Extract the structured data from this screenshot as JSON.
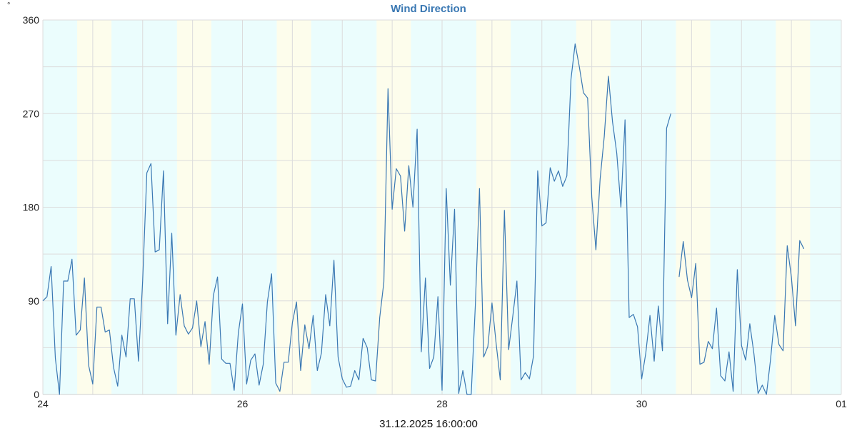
{
  "chart_data": {
    "type": "line",
    "title": "Wind Direction",
    "y_unit": "°",
    "ylim": [
      0,
      360
    ],
    "y_ticks": [
      0,
      90,
      180,
      270,
      360
    ],
    "y_tick_labels": [
      "0",
      "90",
      "180",
      "270",
      "360"
    ],
    "x_range": [
      "2025-12-24 00:00",
      "2026-01-01 00:00"
    ],
    "x_ticks": [
      "2025-12-24 00:00",
      "2025-12-26 00:00",
      "2025-12-28 00:00",
      "2025-12-30 00:00",
      "2026-01-01 00:00"
    ],
    "x_tick_labels": [
      "24",
      "26",
      "28",
      "30",
      "01"
    ],
    "grid": true,
    "night_band_color": "#ebfdfd",
    "day_band_color": "#fdfdec",
    "line_color": "#3a78b3",
    "title_color": "#3a78b3",
    "current_time": "31.12.2025 16:00:00",
    "day_bands": [
      [
        "2025-12-24 08:15",
        "2025-12-24 16:30"
      ],
      [
        "2025-12-25 08:15",
        "2025-12-25 16:30"
      ],
      [
        "2025-12-26 08:15",
        "2025-12-26 16:30"
      ],
      [
        "2025-12-27 08:15",
        "2025-12-27 16:30"
      ],
      [
        "2025-12-28 08:15",
        "2025-12-28 16:30"
      ],
      [
        "2025-12-29 08:15",
        "2025-12-29 16:30"
      ],
      [
        "2025-12-30 08:15",
        "2025-12-30 16:30"
      ],
      [
        "2025-12-31 08:15",
        "2025-12-31 16:30"
      ]
    ],
    "series": [
      {
        "values": [
          [
            "2025-12-24 00:00",
            90
          ],
          [
            "2025-12-24 01:00",
            94
          ],
          [
            "2025-12-24 02:00",
            123
          ],
          [
            "2025-12-24 03:00",
            35
          ],
          [
            "2025-12-24 04:00",
            0
          ],
          [
            "2025-12-24 05:00",
            109
          ],
          [
            "2025-12-24 06:00",
            109
          ],
          [
            "2025-12-24 07:00",
            130
          ],
          [
            "2025-12-24 08:00",
            57
          ],
          [
            "2025-12-24 09:00",
            62
          ],
          [
            "2025-12-24 10:00",
            112
          ],
          [
            "2025-12-24 11:00",
            28
          ],
          [
            "2025-12-24 12:00",
            10
          ],
          [
            "2025-12-24 13:00",
            84
          ],
          [
            "2025-12-24 14:00",
            84
          ],
          [
            "2025-12-24 15:00",
            60
          ],
          [
            "2025-12-24 16:00",
            62
          ],
          [
            "2025-12-24 17:00",
            26
          ],
          [
            "2025-12-24 18:00",
            8
          ],
          [
            "2025-12-24 19:00",
            57
          ],
          [
            "2025-12-24 20:00",
            36
          ],
          [
            "2025-12-24 21:00",
            92
          ],
          [
            "2025-12-24 22:00",
            92
          ],
          [
            "2025-12-24 23:00",
            32
          ],
          [
            "2025-12-25 00:00",
            110
          ],
          [
            "2025-12-25 01:00",
            213
          ],
          [
            "2025-12-25 02:00",
            222
          ],
          [
            "2025-12-25 03:00",
            137
          ],
          [
            "2025-12-25 04:00",
            139
          ],
          [
            "2025-12-25 05:00",
            215
          ],
          [
            "2025-12-25 06:00",
            68
          ],
          [
            "2025-12-25 07:00",
            155
          ],
          [
            "2025-12-25 08:00",
            57
          ],
          [
            "2025-12-25 09:00",
            96
          ],
          [
            "2025-12-25 10:00",
            66
          ],
          [
            "2025-12-25 11:00",
            58
          ],
          [
            "2025-12-25 12:00",
            64
          ],
          [
            "2025-12-25 13:00",
            90
          ],
          [
            "2025-12-25 14:00",
            46
          ],
          [
            "2025-12-25 15:00",
            70
          ],
          [
            "2025-12-25 16:00",
            29
          ],
          [
            "2025-12-25 17:00",
            95
          ],
          [
            "2025-12-25 18:00",
            113
          ],
          [
            "2025-12-25 19:00",
            34
          ],
          [
            "2025-12-25 20:00",
            30
          ],
          [
            "2025-12-25 21:00",
            30
          ],
          [
            "2025-12-25 22:00",
            4
          ],
          [
            "2025-12-25 23:00",
            59
          ],
          [
            "2025-12-26 00:00",
            87
          ],
          [
            "2025-12-26 01:00",
            10
          ],
          [
            "2025-12-26 02:00",
            33
          ],
          [
            "2025-12-26 03:00",
            39
          ],
          [
            "2025-12-26 04:00",
            9
          ],
          [
            "2025-12-26 05:00",
            29
          ],
          [
            "2025-12-26 06:00",
            89
          ],
          [
            "2025-12-26 07:00",
            116
          ],
          [
            "2025-12-26 08:00",
            11
          ],
          [
            "2025-12-26 09:00",
            3
          ],
          [
            "2025-12-26 10:00",
            31
          ],
          [
            "2025-12-26 11:00",
            31
          ],
          [
            "2025-12-26 12:00",
            69
          ],
          [
            "2025-12-26 13:00",
            89
          ],
          [
            "2025-12-26 14:00",
            23
          ],
          [
            "2025-12-26 15:00",
            67
          ],
          [
            "2025-12-26 16:00",
            44
          ],
          [
            "2025-12-26 17:00",
            76
          ],
          [
            "2025-12-26 18:00",
            23
          ],
          [
            "2025-12-26 19:00",
            40
          ],
          [
            "2025-12-26 20:00",
            96
          ],
          [
            "2025-12-26 21:00",
            66
          ],
          [
            "2025-12-26 22:00",
            129
          ],
          [
            "2025-12-26 23:00",
            36
          ],
          [
            "2025-12-27 00:00",
            15
          ],
          [
            "2025-12-27 01:00",
            7
          ],
          [
            "2025-12-27 02:00",
            8
          ],
          [
            "2025-12-27 03:00",
            23
          ],
          [
            "2025-12-27 04:00",
            14
          ],
          [
            "2025-12-27 05:00",
            54
          ],
          [
            "2025-12-27 06:00",
            45
          ],
          [
            "2025-12-27 07:00",
            14
          ],
          [
            "2025-12-27 08:00",
            13
          ],
          [
            "2025-12-27 09:00",
            74
          ],
          [
            "2025-12-27 10:00",
            108
          ],
          [
            "2025-12-27 11:00",
            294
          ],
          [
            "2025-12-27 12:00",
            178
          ],
          [
            "2025-12-27 13:00",
            217
          ],
          [
            "2025-12-27 14:00",
            210
          ],
          [
            "2025-12-27 15:00",
            157
          ],
          [
            "2025-12-27 16:00",
            220
          ],
          [
            "2025-12-27 17:00",
            180
          ],
          [
            "2025-12-27 18:00",
            255
          ],
          [
            "2025-12-27 19:00",
            41
          ],
          [
            "2025-12-27 20:00",
            112
          ],
          [
            "2025-12-27 21:00",
            25
          ],
          [
            "2025-12-27 22:00",
            36
          ],
          [
            "2025-12-27 23:00",
            94
          ],
          [
            "2025-12-28 00:00",
            4
          ],
          [
            "2025-12-28 01:00",
            198
          ],
          [
            "2025-12-28 02:00",
            105
          ],
          [
            "2025-12-28 03:00",
            178
          ],
          [
            "2025-12-28 04:00",
            1
          ],
          [
            "2025-12-28 05:00",
            23
          ],
          [
            "2025-12-28 06:00",
            0
          ],
          [
            "2025-12-28 07:00",
            0
          ],
          [
            "2025-12-28 08:00",
            86
          ],
          [
            "2025-12-28 09:00",
            198
          ],
          [
            "2025-12-28 10:00",
            36
          ],
          [
            "2025-12-28 11:00",
            46
          ],
          [
            "2025-12-28 12:00",
            88
          ],
          [
            "2025-12-28 13:00",
            49
          ],
          [
            "2025-12-28 14:00",
            14
          ],
          [
            "2025-12-28 15:00",
            177
          ],
          [
            "2025-12-28 16:00",
            43
          ],
          [
            "2025-12-28 17:00",
            75
          ],
          [
            "2025-12-28 18:00",
            109
          ],
          [
            "2025-12-28 19:00",
            14
          ],
          [
            "2025-12-28 20:00",
            21
          ],
          [
            "2025-12-28 21:00",
            15
          ],
          [
            "2025-12-28 22:00",
            37
          ],
          [
            "2025-12-28 23:00",
            215
          ],
          [
            "2025-12-29 00:00",
            162
          ],
          [
            "2025-12-29 01:00",
            165
          ],
          [
            "2025-12-29 02:00",
            218
          ],
          [
            "2025-12-29 03:00",
            205
          ],
          [
            "2025-12-29 04:00",
            215
          ],
          [
            "2025-12-29 05:00",
            200
          ],
          [
            "2025-12-29 06:00",
            210
          ],
          [
            "2025-12-29 07:00",
            303
          ],
          [
            "2025-12-29 08:00",
            337
          ],
          [
            "2025-12-29 09:00",
            315
          ],
          [
            "2025-12-29 10:00",
            290
          ],
          [
            "2025-12-29 11:00",
            285
          ],
          [
            "2025-12-29 12:00",
            190
          ],
          [
            "2025-12-29 13:00",
            139
          ],
          [
            "2025-12-29 14:00",
            207
          ],
          [
            "2025-12-29 15:00",
            248
          ],
          [
            "2025-12-29 16:00",
            306
          ],
          [
            "2025-12-29 17:00",
            262
          ],
          [
            "2025-12-29 18:00",
            232
          ],
          [
            "2025-12-29 19:00",
            180
          ],
          [
            "2025-12-29 20:00",
            264
          ],
          [
            "2025-12-29 21:00",
            74
          ],
          [
            "2025-12-29 22:00",
            77
          ],
          [
            "2025-12-29 23:00",
            65
          ],
          [
            "2025-12-30 00:00",
            15
          ],
          [
            "2025-12-30 01:00",
            40
          ],
          [
            "2025-12-30 02:00",
            76
          ],
          [
            "2025-12-30 03:00",
            32
          ],
          [
            "2025-12-30 04:00",
            85
          ],
          [
            "2025-12-30 05:00",
            42
          ],
          [
            "2025-12-30 06:00",
            256
          ],
          [
            "2025-12-30 07:00",
            270
          ],
          [
            "2025-12-30 08:00",
            null
          ],
          [
            "2025-12-30 09:00",
            113
          ],
          [
            "2025-12-30 10:00",
            147
          ],
          [
            "2025-12-30 11:00",
            110
          ],
          [
            "2025-12-30 12:00",
            93
          ],
          [
            "2025-12-30 13:00",
            126
          ],
          [
            "2025-12-30 14:00",
            29
          ],
          [
            "2025-12-30 15:00",
            31
          ],
          [
            "2025-12-30 16:00",
            51
          ],
          [
            "2025-12-30 17:00",
            44
          ],
          [
            "2025-12-30 18:00",
            83
          ],
          [
            "2025-12-30 19:00",
            18
          ],
          [
            "2025-12-30 20:00",
            13
          ],
          [
            "2025-12-30 21:00",
            41
          ],
          [
            "2025-12-30 22:00",
            3
          ],
          [
            "2025-12-30 23:00",
            120
          ],
          [
            "2025-12-31 00:00",
            47
          ],
          [
            "2025-12-31 01:00",
            33
          ],
          [
            "2025-12-31 02:00",
            68
          ],
          [
            "2025-12-31 03:00",
            39
          ],
          [
            "2025-12-31 04:00",
            1
          ],
          [
            "2025-12-31 05:00",
            9
          ],
          [
            "2025-12-31 06:00",
            0
          ],
          [
            "2025-12-31 07:00",
            34
          ],
          [
            "2025-12-31 08:00",
            76
          ],
          [
            "2025-12-31 09:00",
            48
          ],
          [
            "2025-12-31 10:00",
            42
          ],
          [
            "2025-12-31 11:00",
            143
          ],
          [
            "2025-12-31 12:00",
            113
          ],
          [
            "2025-12-31 13:00",
            66
          ],
          [
            "2025-12-31 14:00",
            148
          ],
          [
            "2025-12-31 15:00",
            140
          ]
        ]
      }
    ]
  }
}
